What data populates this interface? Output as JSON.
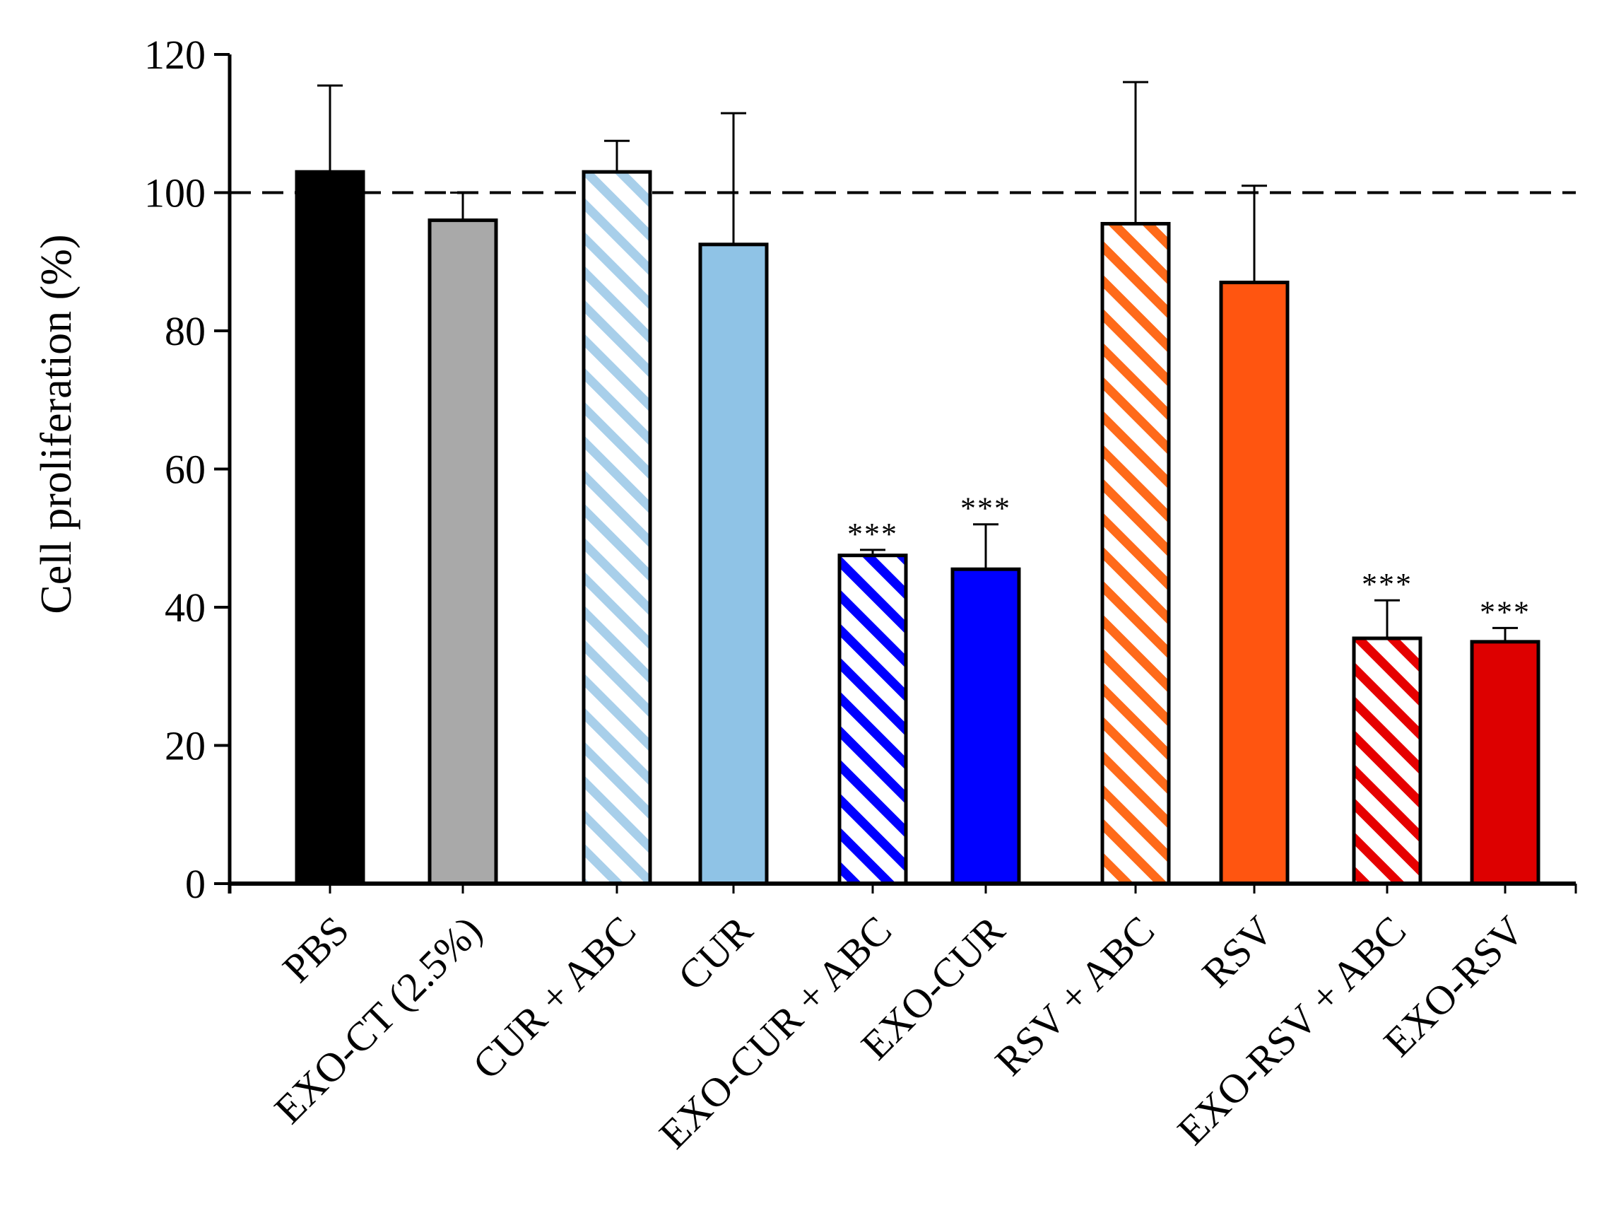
{
  "chart_data": {
    "type": "bar",
    "title": "",
    "xlabel": "",
    "ylabel": "Cell proliferation (%)",
    "ylim": [
      0,
      120
    ],
    "yticks": [
      "0",
      "20",
      "40",
      "60",
      "80",
      "100",
      "120"
    ],
    "reference_line": 100,
    "categories": [
      "PBS",
      "EXO-CT (2.5%)",
      "CUR + ABC",
      "CUR",
      "EXO-CUR + ABC",
      "EXO-CUR",
      "RSV + ABC",
      "RSV",
      "EXO-RSV + ABC",
      "EXO-RSV"
    ],
    "values": [
      103,
      96,
      103,
      92.5,
      47.5,
      45.5,
      95.5,
      87,
      35.5,
      35
    ],
    "error_upper": [
      115.5,
      100,
      107.5,
      111.5,
      48.3,
      52,
      116,
      101,
      41,
      37
    ],
    "significance": [
      "",
      "",
      "",
      "",
      "***",
      "***",
      "",
      "",
      "***",
      "***"
    ],
    "fill_colors": [
      "#000000",
      "#a9a9a9",
      "#a8cfea",
      "#8fc3e6",
      "#0000ff",
      "#0000ff",
      "#ff6a1a",
      "#ff5510",
      "#e60000",
      "#dd0000"
    ],
    "patterns": [
      "solid",
      "solid",
      "hatched",
      "solid",
      "hatched",
      "solid",
      "hatched",
      "solid",
      "hatched",
      "solid"
    ]
  }
}
